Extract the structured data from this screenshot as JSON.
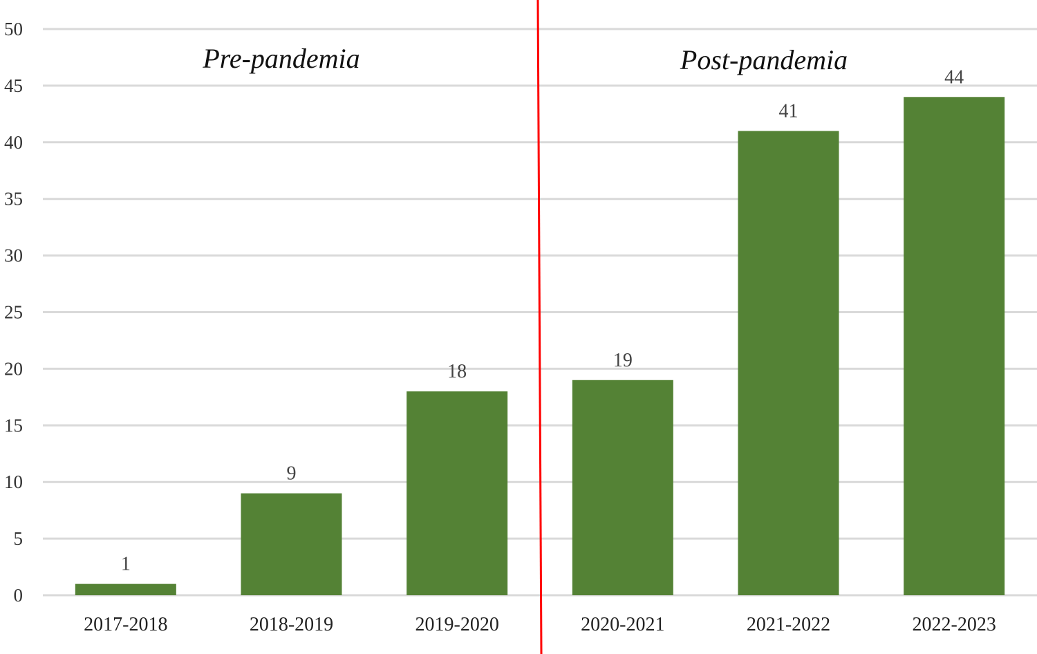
{
  "chart_data": {
    "type": "bar",
    "title": "",
    "xlabel": "",
    "ylabel": "",
    "categories": [
      "2017-2018",
      "2018-2019",
      "2019-2020",
      "2020-2021",
      "2021-2022",
      "2022-2023"
    ],
    "values": [
      1,
      9,
      18,
      19,
      41,
      44
    ],
    "ylim": [
      0,
      50
    ],
    "yticks": [
      0,
      5,
      10,
      15,
      20,
      25,
      30,
      35,
      40,
      45,
      50
    ],
    "grid": true,
    "legend": "none",
    "divider_after_category_index": 2,
    "annotations": [
      {
        "text": "Pre-pandemia",
        "group": "left"
      },
      {
        "text": "Post-pandemia",
        "group": "right"
      }
    ],
    "colors": {
      "bar": "#548235",
      "grid": "#d9d9d9",
      "divider": "#ff0000"
    }
  }
}
